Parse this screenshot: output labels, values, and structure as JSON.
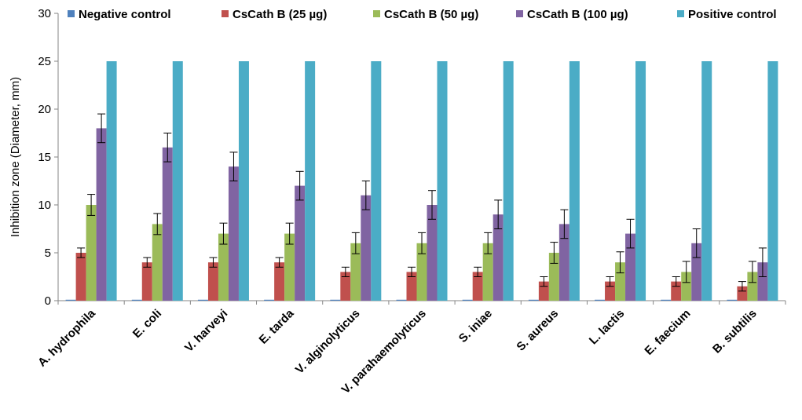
{
  "chart_data": {
    "type": "bar",
    "title": "",
    "xlabel": "",
    "ylabel": "Inhibition zone (Diameter, mm)",
    "ylim": [
      0,
      30
    ],
    "yticks": [
      0,
      5,
      10,
      15,
      20,
      25,
      30
    ],
    "grid": false,
    "legend_position": "top",
    "categories": [
      "A. hydrophila",
      "E. coli",
      "V. harveyi",
      "E. tarda",
      "V. alginolyticus",
      "V. parahaemolyticus",
      "S. iniae",
      "S. aureus",
      "L. lactis",
      "E. faecium",
      "B. subtilis"
    ],
    "series": [
      {
        "name": "Negative control",
        "color": "#4F81BD",
        "values": [
          0.1,
          0.1,
          0.1,
          0.1,
          0.1,
          0.1,
          0.1,
          0.1,
          0.1,
          0.1,
          0.1
        ],
        "errors": [
          0,
          0,
          0,
          0,
          0,
          0,
          0,
          0,
          0,
          0,
          0
        ]
      },
      {
        "name": "CsCath B (25 µg)",
        "color": "#C0504D",
        "values": [
          5,
          4,
          4,
          4,
          3,
          3,
          3,
          2,
          2,
          2,
          1.5
        ],
        "errors": [
          0.5,
          0.5,
          0.5,
          0.5,
          0.5,
          0.5,
          0.5,
          0.5,
          0.5,
          0.5,
          0.5
        ]
      },
      {
        "name": "CsCath B (50 µg)",
        "color": "#9BBB59",
        "values": [
          10,
          8,
          7,
          7,
          6,
          6,
          6,
          5,
          4,
          3,
          3
        ],
        "errors": [
          1.1,
          1.1,
          1.1,
          1.1,
          1.1,
          1.1,
          1.1,
          1.1,
          1.1,
          1.1,
          1.1
        ]
      },
      {
        "name": "CsCath B (100 µg)",
        "color": "#8064A2",
        "values": [
          18,
          16,
          14,
          12,
          11,
          10,
          9,
          8,
          7,
          6,
          4
        ],
        "errors": [
          1.5,
          1.5,
          1.5,
          1.5,
          1.5,
          1.5,
          1.5,
          1.5,
          1.5,
          1.5,
          1.5
        ]
      },
      {
        "name": "Positive control",
        "color": "#4BACC6",
        "values": [
          25,
          25,
          25,
          25,
          25,
          25,
          25,
          25,
          25,
          25,
          25
        ],
        "errors": [
          0,
          0,
          0,
          0,
          0,
          0,
          0,
          0,
          0,
          0,
          0
        ]
      }
    ]
  }
}
